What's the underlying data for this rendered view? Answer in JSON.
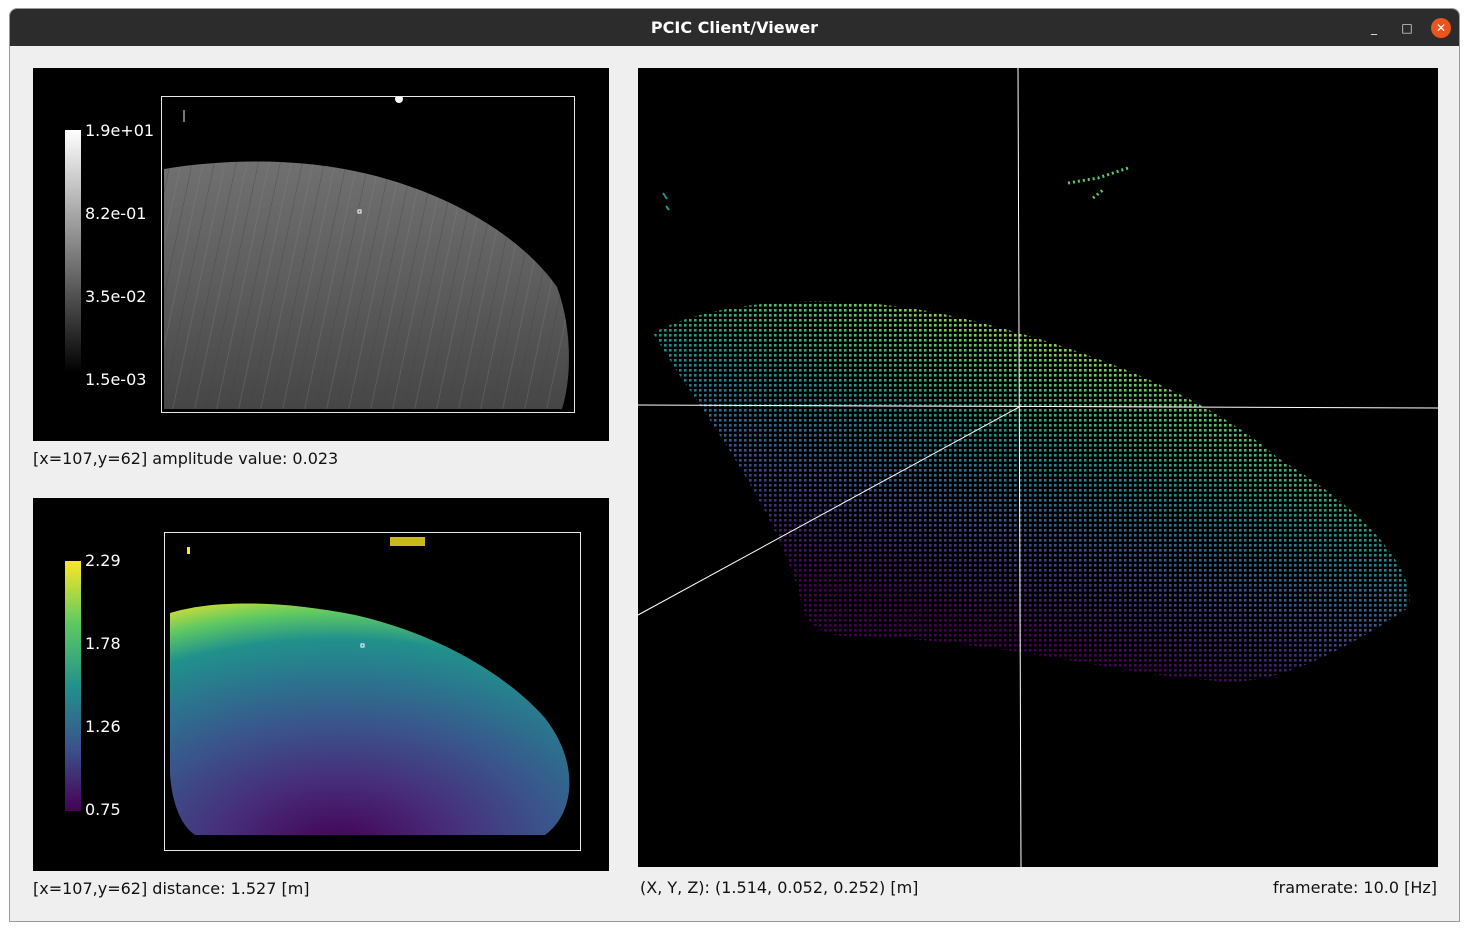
{
  "window": {
    "title": "PCIC Client/Viewer",
    "controls": {
      "minimize": "_",
      "maximize": "□",
      "close": "✕"
    }
  },
  "amplitude": {
    "colorbar_ticks": [
      "1.9e+01",
      "8.2e-01",
      "3.5e-02",
      "1.5e-03"
    ],
    "status": "[x=107,y=62] amplitude value: 0.023"
  },
  "distance": {
    "colorbar_ticks": [
      "2.29",
      "1.78",
      "1.26",
      "0.75"
    ],
    "status": "[x=107,y=62] distance: 1.527 [m]"
  },
  "pointcloud": {
    "xyz_status": "(X, Y, Z): (1.514, 0.052, 0.252) [m]",
    "framerate": "framerate: 10.0 [Hz]"
  },
  "colors": {
    "titlebar": "#2c2c2c",
    "window_bg": "#efefef",
    "close_button": "#e9541f",
    "viridis": [
      "#440154",
      "#3b528b",
      "#21918c",
      "#5ec962",
      "#fde725"
    ]
  }
}
